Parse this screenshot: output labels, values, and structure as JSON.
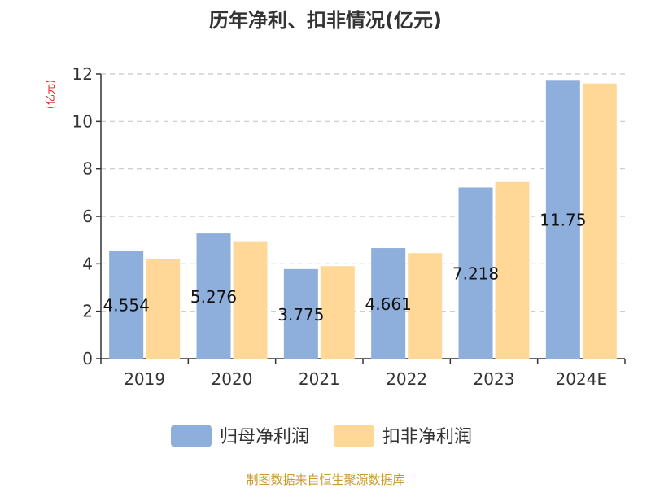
{
  "chart_data": {
    "type": "bar",
    "title": "历年净利、扣非情况(亿元)",
    "unit_label": "(亿元)",
    "categories": [
      "2019",
      "2020",
      "2021",
      "2022",
      "2023",
      "2024E"
    ],
    "series": [
      {
        "name": "归母净利润",
        "color": "#8eaedb",
        "values": [
          4.554,
          5.276,
          3.775,
          4.661,
          7.218,
          11.75
        ],
        "labels": [
          "4.554",
          "5.276",
          "3.775",
          "4.661",
          "7.218",
          "11.75"
        ]
      },
      {
        "name": "扣非净利润",
        "color": "#ffd898",
        "values": [
          4.2,
          4.95,
          3.9,
          4.45,
          7.45,
          11.6
        ]
      }
    ],
    "ylim": [
      0,
      12
    ],
    "yticks": [
      0,
      2,
      4,
      6,
      8,
      10,
      12
    ],
    "grid": true,
    "legend_position": "bottom"
  },
  "source_text": "制图数据来自恒生聚源数据库"
}
